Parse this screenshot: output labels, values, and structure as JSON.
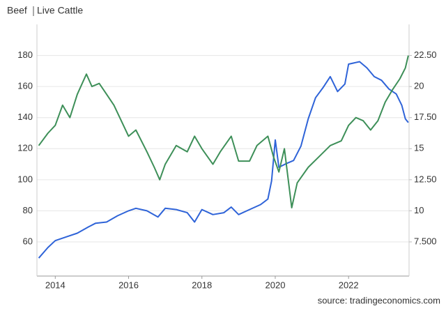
{
  "chart_data": {
    "type": "line",
    "source": "source: tradingeconomics.com",
    "xlim": [
      2013.5,
      2023.65
    ],
    "xticks": [
      2014,
      2016,
      2018,
      2020,
      2022
    ],
    "ylim": [
      38,
      200
    ],
    "yticks": [
      60,
      80,
      100,
      120,
      140,
      160,
      180
    ],
    "y2lim": [
      4.75,
      25
    ],
    "y2ticks": [
      {
        "value": 7.5,
        "label": "7.500"
      },
      10,
      {
        "value": 12.5,
        "label": "12.50"
      },
      15,
      {
        "value": 17.5,
        "label": "17.50"
      },
      20,
      {
        "value": 22.5,
        "label": "22.50"
      }
    ],
    "grid": true,
    "series": [
      {
        "name": "Beef",
        "color": "#2e63d8",
        "axis": "y2",
        "x": [
          2013.55,
          2013.8,
          2014.0,
          2014.3,
          2014.6,
          2014.9,
          2015.1,
          2015.4,
          2015.7,
          2016.0,
          2016.2,
          2016.5,
          2016.8,
          2017.0,
          2017.3,
          2017.6,
          2017.8,
          2018.0,
          2018.3,
          2018.6,
          2018.8,
          2019.0,
          2019.3,
          2019.6,
          2019.8,
          2019.9,
          2020.0,
          2020.1,
          2020.3,
          2020.5,
          2020.7,
          2020.9,
          2021.1,
          2021.3,
          2021.5,
          2021.7,
          2021.9,
          2022.0,
          2022.3,
          2022.5,
          2022.7,
          2022.9,
          2023.1,
          2023.3,
          2023.45,
          2023.55,
          2023.63
        ],
        "values": [
          6.2,
          7.05,
          7.6,
          7.9,
          8.2,
          8.7,
          9.0,
          9.1,
          9.6,
          10.0,
          10.2,
          10.0,
          9.5,
          10.2,
          10.1,
          9.85,
          9.1,
          10.1,
          9.7,
          9.85,
          10.3,
          9.7,
          10.1,
          10.5,
          10.95,
          12.4,
          15.7,
          13.5,
          13.8,
          14.05,
          15.2,
          17.4,
          19.1,
          19.9,
          20.8,
          19.6,
          20.2,
          21.8,
          22.0,
          21.5,
          20.8,
          20.5,
          19.8,
          19.4,
          18.5,
          17.4,
          17.1
        ]
      },
      {
        "name": "Live Cattle",
        "color": "#3d8f58",
        "x": [
          2013.55,
          2013.8,
          2014.0,
          2014.2,
          2014.4,
          2014.6,
          2014.85,
          2015.0,
          2015.2,
          2015.4,
          2015.6,
          2015.8,
          2016.0,
          2016.2,
          2016.5,
          2016.7,
          2016.85,
          2017.0,
          2017.3,
          2017.6,
          2017.8,
          2018.0,
          2018.3,
          2018.5,
          2018.8,
          2019.0,
          2019.3,
          2019.5,
          2019.8,
          2019.95,
          2020.1,
          2020.25,
          2020.45,
          2020.6,
          2020.9,
          2021.2,
          2021.5,
          2021.8,
          2022.0,
          2022.2,
          2022.4,
          2022.6,
          2022.8,
          2023.0,
          2023.2,
          2023.4,
          2023.55,
          2023.63
        ],
        "values": [
          122,
          130,
          135,
          148,
          140,
          155,
          168,
          160,
          162,
          155,
          148,
          138,
          128,
          132,
          118,
          108,
          100,
          110,
          122,
          118,
          128,
          120,
          110,
          118,
          128,
          112,
          112,
          122,
          128,
          115,
          105,
          120,
          82,
          98,
          108,
          115,
          122,
          125,
          135,
          140,
          138,
          132,
          138,
          150,
          158,
          165,
          172,
          180
        ]
      }
    ]
  }
}
